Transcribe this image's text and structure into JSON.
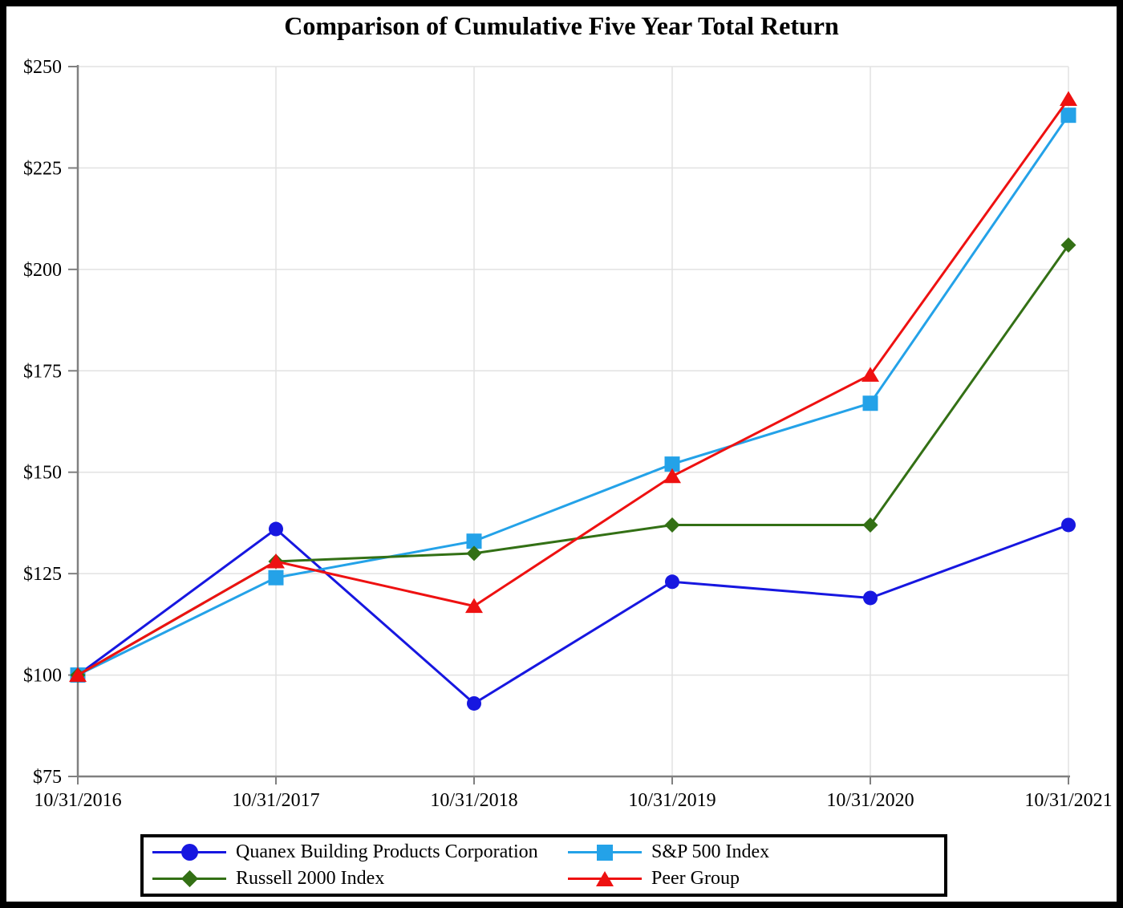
{
  "title": "Comparison of Cumulative Five Year Total Return",
  "chart_data": {
    "type": "line",
    "title": "Comparison of Cumulative Five Year Total Return",
    "x_categories": [
      "10/31/2016",
      "10/31/2017",
      "10/31/2018",
      "10/31/2019",
      "10/31/2020",
      "10/31/2021"
    ],
    "ylim": [
      75,
      250
    ],
    "y_tick_step": 25,
    "y_tick_prefix": "$",
    "y_tick_labels": [
      "$75",
      "$100",
      "$125",
      "$150",
      "$175",
      "$200",
      "$225",
      "$250"
    ],
    "grid": true,
    "legend_position": "bottom",
    "colors": {
      "axis": "#808080",
      "gridline": "#e2e2e2",
      "quanex_blue": "#1717e0",
      "sp500_skyblue": "#24a2e8",
      "russell_green": "#337015",
      "peer_red": "#ee1111"
    },
    "series": [
      {
        "name": "Quanex Building Products Corporation",
        "marker": "circle",
        "color": "#1717e0",
        "values": [
          100,
          136,
          93,
          123,
          119,
          137
        ]
      },
      {
        "name": "S&P 500 Index",
        "marker": "square",
        "color": "#24a2e8",
        "values": [
          100,
          124,
          133,
          152,
          167,
          238
        ]
      },
      {
        "name": "Russell 2000 Index",
        "marker": "diamond",
        "color": "#337015",
        "values": [
          100,
          128,
          130,
          137,
          137,
          206
        ]
      },
      {
        "name": "Peer Group",
        "marker": "triangle",
        "color": "#ee1111",
        "values": [
          100,
          128,
          117,
          149,
          174,
          242
        ]
      }
    ]
  }
}
